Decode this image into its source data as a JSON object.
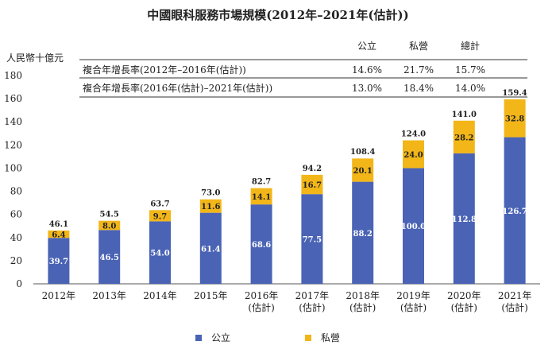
{
  "chart_data": {
    "type": "bar",
    "stacked": true,
    "title": "中國眼科服務市場規模(2012年–2021年(估計))",
    "ylabel": "人民幣十億元",
    "ylim": [
      0,
      180
    ],
    "yticks": [
      "0",
      "20",
      "40",
      "60",
      "80",
      "100",
      "120",
      "140",
      "160",
      "180"
    ],
    "categories": [
      [
        "2012年"
      ],
      [
        "2013年"
      ],
      [
        "2014年"
      ],
      [
        "2015年"
      ],
      [
        "2016年",
        "(估計)"
      ],
      [
        "2017年",
        "(估計)"
      ],
      [
        "2018年",
        "(估計)"
      ],
      [
        "2019年",
        "(估計)"
      ],
      [
        "2020年",
        "(估計)"
      ],
      [
        "2021年",
        "(估計)"
      ]
    ],
    "series": [
      {
        "name": "公立",
        "color": "#4a63b5",
        "label_color": "#ffffff",
        "values": [
          39.7,
          46.5,
          54.0,
          61.4,
          68.6,
          77.5,
          88.2,
          100.0,
          112.8,
          126.7
        ],
        "labels": [
          "39.7",
          "46.5",
          "54.0",
          "61.4",
          "68.6",
          "77.5",
          "88.2",
          "100.0",
          "112.8",
          "126.7"
        ]
      },
      {
        "name": "私營",
        "color": "#f2b619",
        "label_color": "#222222",
        "values": [
          6.4,
          8.0,
          9.7,
          11.6,
          14.1,
          16.7,
          20.1,
          24.0,
          28.2,
          32.8
        ],
        "labels": [
          "6.4",
          "8.0",
          "9.7",
          "11.6",
          "14.1",
          "16.7",
          "20.1",
          "24.0",
          "28.2",
          "32.8"
        ]
      }
    ],
    "totals": [
      46.1,
      54.5,
      63.7,
      73.0,
      82.7,
      94.2,
      108.4,
      124.0,
      141.0,
      159.4
    ],
    "total_labels": [
      "46.1",
      "54.5",
      "63.7",
      "73.0",
      "82.7",
      "94.2",
      "108.4",
      "124.0",
      "141.0",
      "159.4"
    ],
    "cagr_table": {
      "headers": [
        "公立",
        "私營",
        "總計"
      ],
      "rows": [
        {
          "label": "複合年增長率(2012年–2016年(估計))",
          "values": [
            "14.6%",
            "21.7%",
            "15.7%"
          ]
        },
        {
          "label": "複合年增長率(2016年(估計)–2021年(估計))",
          "values": [
            "13.0%",
            "18.4%",
            "14.0%"
          ]
        }
      ]
    },
    "legend": {
      "position": "bottom"
    }
  }
}
